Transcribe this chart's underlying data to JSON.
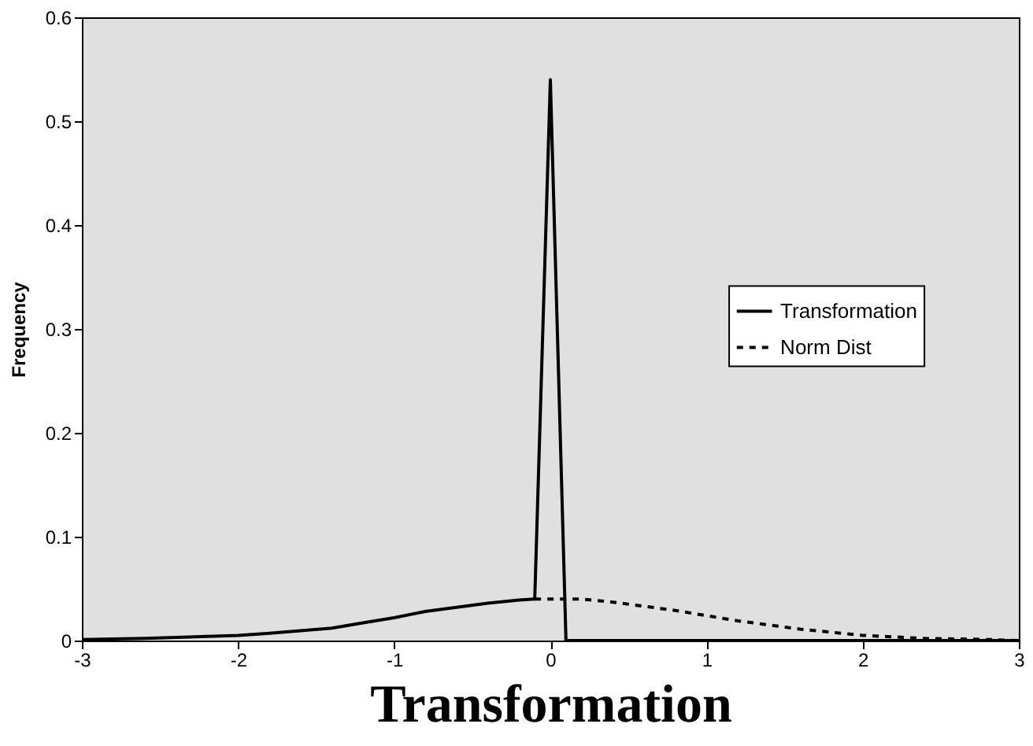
{
  "chart_data": {
    "type": "line",
    "xlabel": "Transformation",
    "ylabel": "Frequency",
    "xlim": [
      -3,
      3
    ],
    "xticks": [
      -3,
      -2,
      -1,
      0,
      1,
      2,
      3
    ],
    "ylim": [
      0,
      0.6
    ],
    "yticks": [
      0,
      0.1,
      0.2,
      0.3,
      0.4,
      0.5,
      0.6
    ],
    "grid": false,
    "legend": "right",
    "marker": "none",
    "series": [
      {
        "name": "Transformation",
        "color": "#000000",
        "line_style": "solid",
        "x": [
          -3,
          -2.6,
          -2.2,
          -2,
          -1.8,
          -1.4,
          -1.2,
          -1,
          -0.8,
          -0.6,
          -0.4,
          -0.2,
          -0.1,
          0,
          0.1,
          3
        ],
        "values": [
          0.001,
          0.002,
          0.004,
          0.005,
          0.007,
          0.012,
          0.017,
          0.022,
          0.028,
          0.032,
          0.036,
          0.039,
          0.04,
          0.54,
          0,
          0
        ]
      },
      {
        "name": "Norm Dist",
        "color": "#000000",
        "line_style": "dashed",
        "x": [
          -0.1,
          0.2,
          0.4,
          0.6,
          0.8,
          1,
          1.2,
          1.4,
          1.6,
          1.8,
          2,
          2.4,
          2.8,
          3
        ],
        "values": [
          0.04,
          0.04,
          0.037,
          0.033,
          0.029,
          0.024,
          0.019,
          0.015,
          0.011,
          0.008,
          0.005,
          0.002,
          0.001,
          0
        ]
      }
    ]
  }
}
